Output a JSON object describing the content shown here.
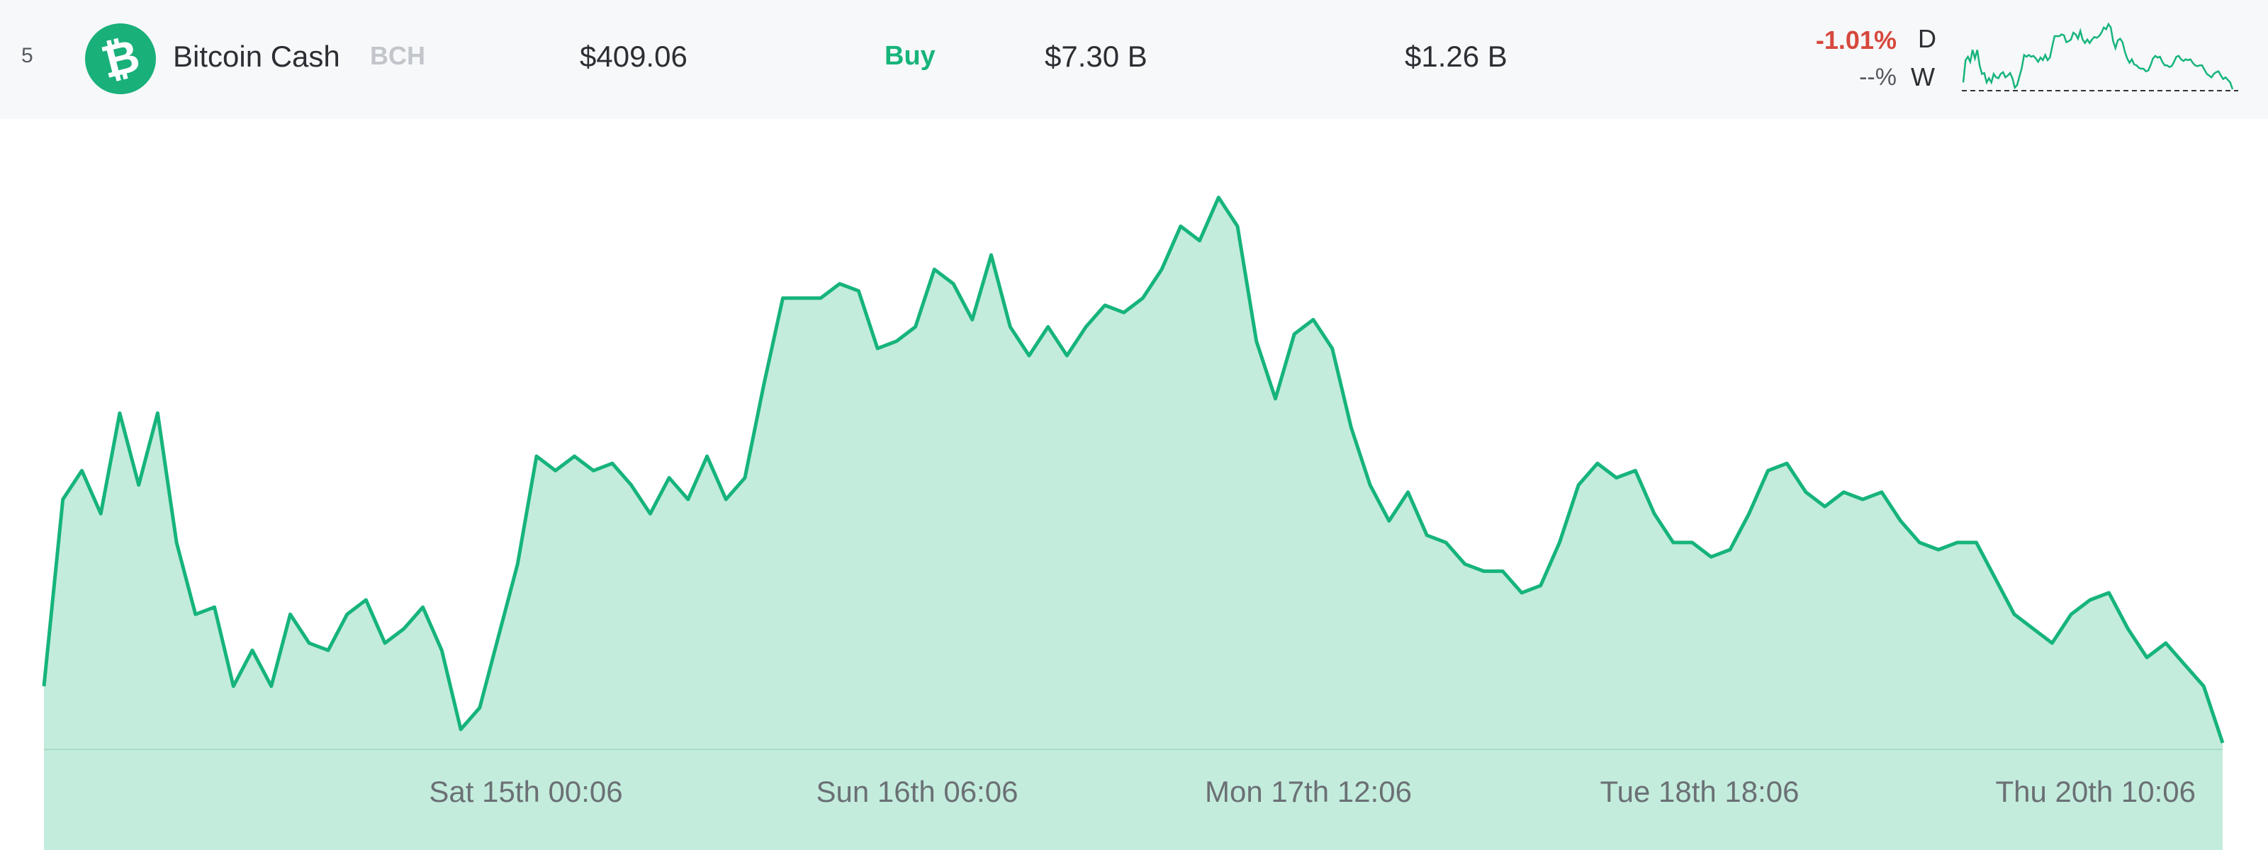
{
  "coin_row": {
    "rank": "5",
    "icon": "bitcoin-cash-icon",
    "icon_glyph": "₿",
    "name": "Bitcoin Cash",
    "symbol": "BCH",
    "price": "$409.06",
    "buy_label": "Buy",
    "market_cap": "$7.30 B",
    "volume": "$1.26 B",
    "change_day": "-1.01%",
    "change_day_label": "D",
    "change_week": "--%",
    "change_week_label": "W"
  },
  "colors": {
    "accent": "#16b47b",
    "fill": "#c3ecdc",
    "negative": "#d6483c"
  },
  "chart_data": {
    "type": "area",
    "x_tick_labels": [
      "Sat 15th 00:06",
      "Sun 16th 06:06",
      "Mon 17th 12:06",
      "Tue 18th 18:06",
      "Thu 20th 10:06"
    ],
    "values": [
      413.0,
      426.0,
      428.0,
      425.0,
      432.0,
      427.0,
      432.0,
      423.0,
      418.0,
      418.5,
      413.0,
      415.5,
      413.0,
      418.0,
      416.0,
      415.5,
      418.0,
      419.0,
      416.0,
      417.0,
      418.5,
      415.5,
      410.0,
      411.5,
      416.5,
      421.5,
      429.0,
      428.0,
      429.0,
      428.0,
      428.5,
      427.0,
      425.0,
      427.5,
      426.0,
      429.0,
      426.0,
      427.5,
      434.0,
      440.0,
      440.0,
      440.0,
      441.0,
      440.5,
      436.5,
      437.0,
      438.0,
      442.0,
      441.0,
      438.5,
      443.0,
      438.0,
      436.0,
      438.0,
      436.0,
      438.0,
      439.5,
      439.0,
      440.0,
      442.0,
      445.0,
      444.0,
      447.0,
      445.0,
      437.0,
      433.0,
      437.5,
      438.5,
      436.5,
      431.0,
      427.0,
      424.5,
      426.5,
      423.5,
      423.0,
      421.5,
      421.0,
      421.0,
      419.5,
      420.0,
      423.0,
      427.0,
      428.5,
      427.5,
      428.0,
      425.0,
      423.0,
      423.0,
      422.0,
      422.5,
      425.0,
      428.0,
      428.5,
      426.5,
      425.5,
      426.5,
      426.0,
      426.5,
      424.5,
      423.0,
      422.5,
      423.0,
      423.0,
      420.5,
      418.0,
      417.0,
      416.0,
      418.0,
      419.0,
      419.5,
      417.0,
      415.0,
      416.0,
      414.5,
      413.0,
      409.06
    ]
  }
}
